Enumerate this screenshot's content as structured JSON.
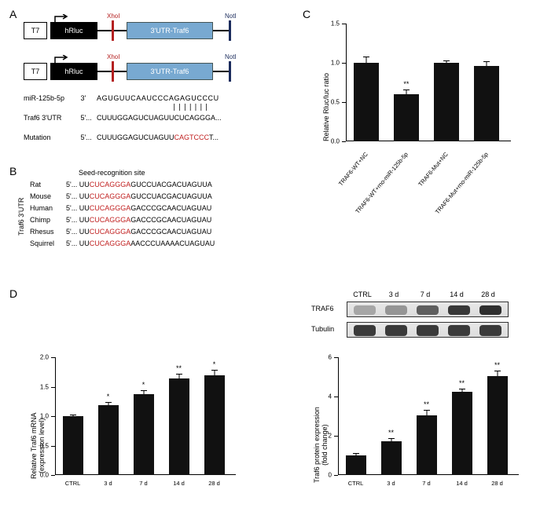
{
  "labels": {
    "A": "A",
    "B": "B",
    "C": "C",
    "D": "D"
  },
  "panelA": {
    "t7": "T7",
    "hrluc": "hRluc",
    "utr": "3'UTR-Traf6",
    "xhoi": "XhoI",
    "noti": "NotI",
    "mir_label": "miR-125b-5p",
    "mir_dir": "3'",
    "mir_seq": "AGUGUUCAAUCCCAGAGUCCCU",
    "traf_label": "Traf6 3'UTR",
    "traf_dir": "5'...",
    "traf_pre": "CUUUGGAGUCUAGUU",
    "traf_seed": "CUCAGGGA",
    "traf_post": "...",
    "mut_label": "Mutation",
    "mut_dir": "5'...",
    "mut_pre": "CUUUGGAGUCUAGUU",
    "mut_seed": "CAGTCCC",
    "mut_post": "T..."
  },
  "panelB": {
    "title": "Seed-recognition site",
    "side": "Traf6 3'UTR",
    "species": [
      "Rat",
      "Mouse",
      "Human",
      "Chimp",
      "Rhesus",
      "Squirrel"
    ],
    "seqs": [
      {
        "pre": "5'... UU",
        "seed": "CUCAGGGA",
        "post": "GUCCUACGACUAGUUA"
      },
      {
        "pre": "5'... UU",
        "seed": "CUCAGGGA",
        "post": "GUCCUACGACUAGUUA"
      },
      {
        "pre": "5'... UU",
        "seed": "CUCAGGGA",
        "post": "GACCCGCAACUAGUAU"
      },
      {
        "pre": "5'... UU",
        "seed": "CUCAGGGA",
        "post": "GACCCGCAACUAGUAU"
      },
      {
        "pre": "5'... UU",
        "seed": "CUCAGGGA",
        "post": "GACCCGCAACUAGUAU"
      },
      {
        "pre": "5'... UU",
        "seed": "CUCAGGGA",
        "post": "AACCCUAAAACUAGUAU"
      }
    ]
  },
  "chartC": {
    "ylabel": "Relative Rluc/luc ratio",
    "ymax": 1.5,
    "ytick_step": 0.5,
    "categories": [
      "TRAF6-WT+NC",
      "TRAF6-WT+rno-miR-125b-5p",
      "TRAF6-Mut+NC",
      "TRAF6-Mut+rno-miR-125b-5p"
    ],
    "values": [
      1.0,
      0.6,
      1.0,
      0.96
    ],
    "errors": [
      0.07,
      0.05,
      0.02,
      0.05
    ],
    "sig": [
      "",
      "**",
      "",
      ""
    ],
    "bar_color": "#111"
  },
  "panelD_blot": {
    "headers": [
      "CTRL",
      "3 d",
      "7 d",
      "14 d",
      "28 d"
    ],
    "rows": [
      "TRAF6",
      "Tubulin"
    ],
    "traf6_intensity": [
      0.2,
      0.3,
      0.62,
      0.85,
      0.9
    ],
    "tub_intensity": [
      0.85,
      0.85,
      0.85,
      0.85,
      0.85
    ]
  },
  "chartD_mrna": {
    "ylabel": "Relative Traf6 mRNA\n(expression level)",
    "ymax": 2.0,
    "ytick_step": 0.5,
    "categories": [
      "CTRL",
      "3 d",
      "7 d",
      "14 d",
      "28 d"
    ],
    "values": [
      1.0,
      1.19,
      1.37,
      1.64,
      1.69
    ],
    "errors": [
      0.02,
      0.04,
      0.06,
      0.07,
      0.09
    ],
    "sig": [
      "",
      "*",
      "*",
      "**",
      "*"
    ],
    "bar_color": "#111"
  },
  "chartD_protein": {
    "ylabel": "Traf6 protein expression\n(fold change)",
    "ymax": 6,
    "ytick_step": 2,
    "categories": [
      "CTRL",
      "3 d",
      "7 d",
      "14 d",
      "28 d"
    ],
    "values": [
      1.0,
      1.72,
      3.05,
      4.25,
      5.05
    ],
    "errors": [
      0.07,
      0.12,
      0.22,
      0.12,
      0.22
    ],
    "sig": [
      "",
      "**",
      "**",
      "**",
      "**"
    ],
    "bar_color": "#111"
  }
}
